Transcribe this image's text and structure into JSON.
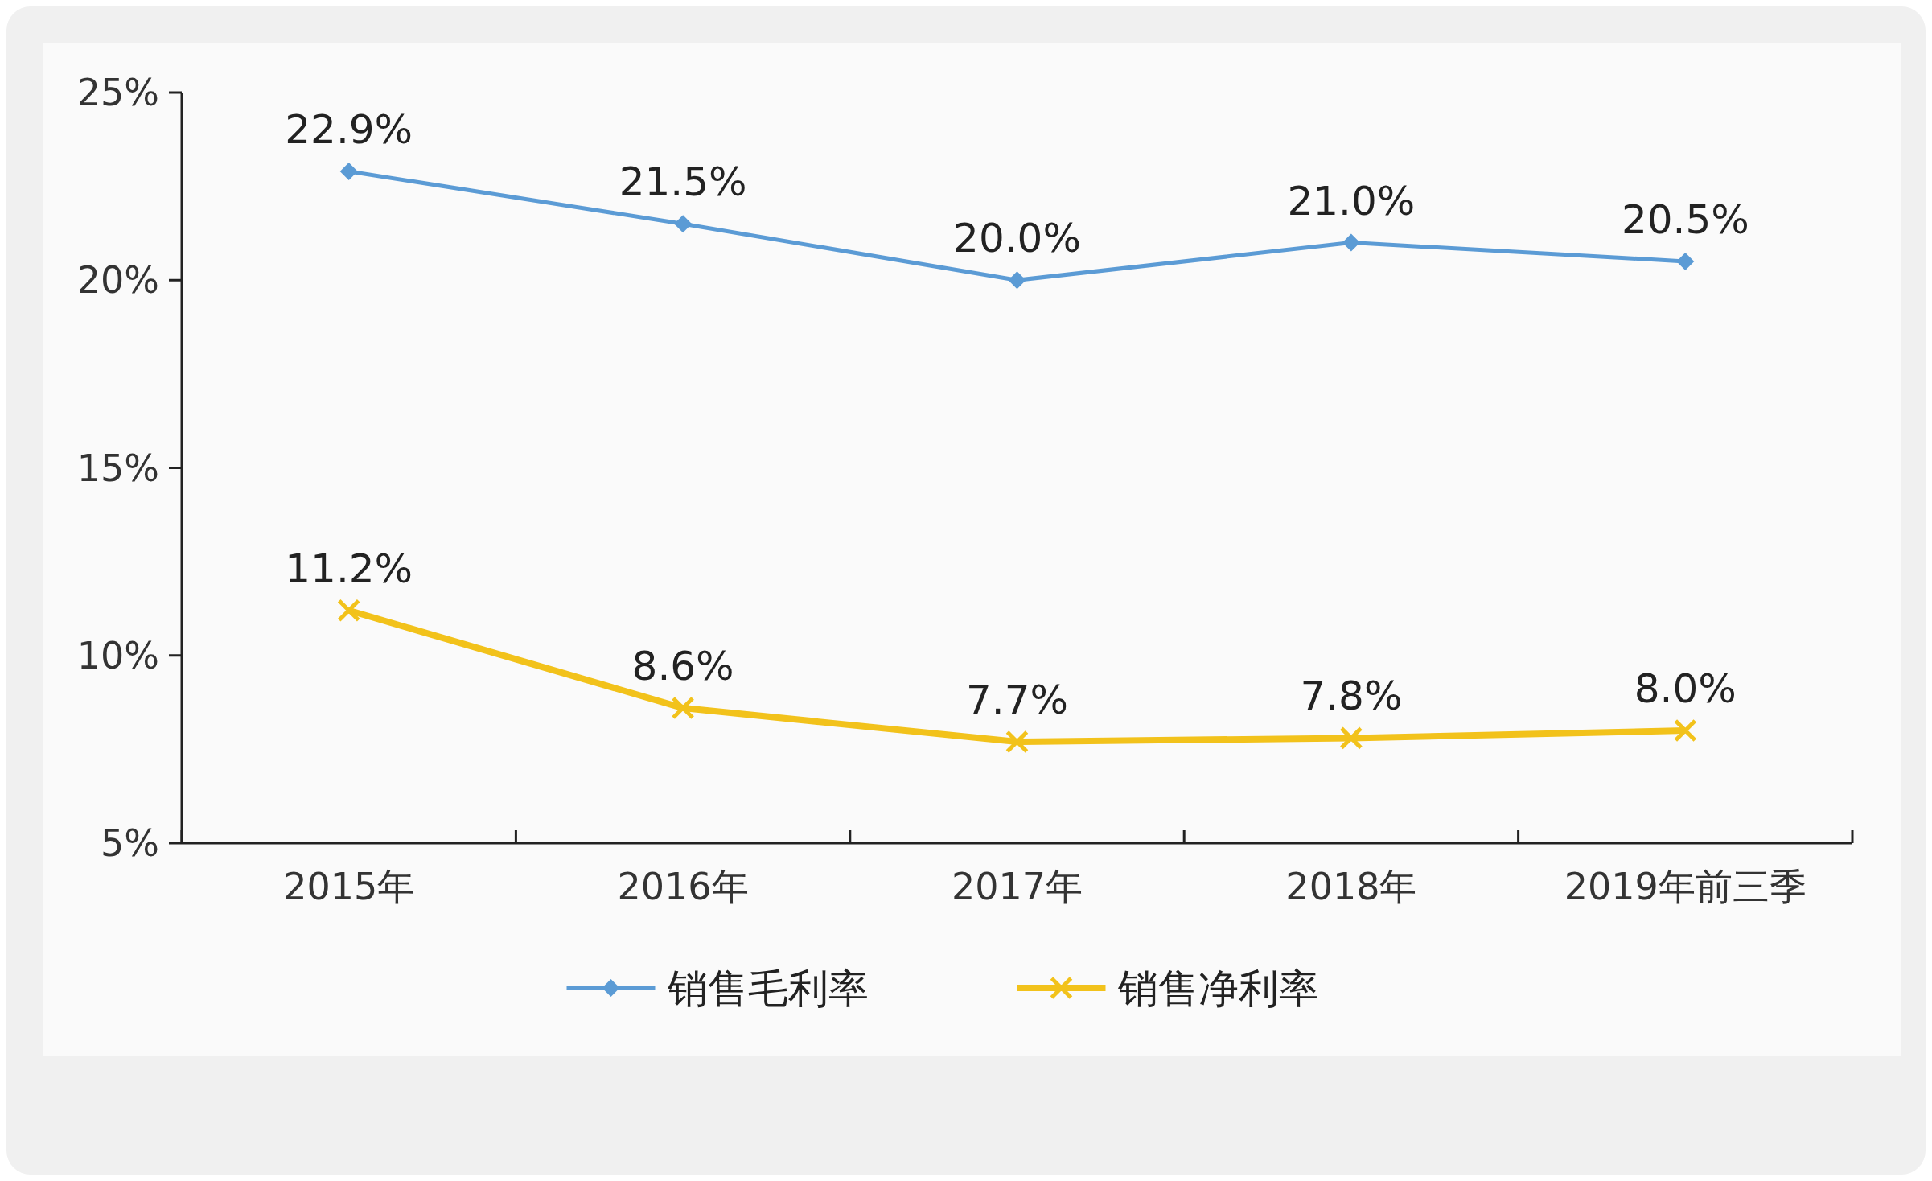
{
  "chart_data": {
    "type": "line",
    "categories": [
      "2015年",
      "2016年",
      "2017年",
      "2018年",
      "2019年前三季"
    ],
    "series": [
      {
        "name": "销售毛利率",
        "color": "#5b9bd5",
        "marker": "diamond",
        "values": [
          22.9,
          21.5,
          20.0,
          21.0,
          20.5
        ],
        "value_labels": [
          "22.9%",
          "21.5%",
          "20.0%",
          "21.0%",
          "20.5%"
        ]
      },
      {
        "name": "销售净利率",
        "color": "#f2c21b",
        "marker": "cross",
        "values": [
          11.2,
          8.6,
          7.7,
          7.8,
          8.0
        ],
        "value_labels": [
          "11.2%",
          "8.6%",
          "7.7%",
          "7.8%",
          "8.0%"
        ]
      }
    ],
    "ylim": [
      5,
      25
    ],
    "yticks": [
      {
        "value": 5,
        "label": "5%"
      },
      {
        "value": 10,
        "label": "10%"
      },
      {
        "value": 15,
        "label": "15%"
      },
      {
        "value": 20,
        "label": "20%"
      },
      {
        "value": 25,
        "label": "25%"
      }
    ],
    "grid": false,
    "legend": "bottom"
  }
}
